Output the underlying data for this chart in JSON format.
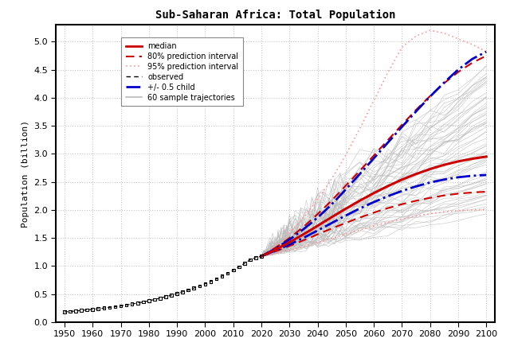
{
  "title": "Sub-Saharan Africa: Total Population",
  "ylabel": "Population (billion)",
  "xlim": [
    1947,
    2103
  ],
  "ylim": [
    0,
    5.3
  ],
  "xticks": [
    1950,
    1960,
    1970,
    1980,
    1990,
    2000,
    2010,
    2020,
    2030,
    2040,
    2050,
    2060,
    2070,
    2080,
    2090,
    2100
  ],
  "yticks": [
    0.0,
    0.5,
    1.0,
    1.5,
    2.0,
    2.5,
    3.0,
    3.5,
    4.0,
    4.5,
    5.0
  ],
  "bg_color": "#ffffff",
  "grid_color": "#c8c8c8",
  "observed_years": [
    1950,
    1952,
    1954,
    1956,
    1958,
    1960,
    1962,
    1964,
    1966,
    1968,
    1970,
    1972,
    1974,
    1976,
    1978,
    1980,
    1982,
    1984,
    1986,
    1988,
    1990,
    1992,
    1994,
    1996,
    1998,
    2000,
    2002,
    2004,
    2006,
    2008,
    2010,
    2012,
    2014,
    2016,
    2018,
    2020
  ],
  "observed_values": [
    0.183,
    0.191,
    0.199,
    0.208,
    0.218,
    0.228,
    0.239,
    0.251,
    0.263,
    0.276,
    0.29,
    0.306,
    0.323,
    0.341,
    0.36,
    0.381,
    0.404,
    0.428,
    0.454,
    0.481,
    0.51,
    0.54,
    0.572,
    0.606,
    0.644,
    0.683,
    0.726,
    0.771,
    0.82,
    0.872,
    0.926,
    0.985,
    1.046,
    1.111,
    1.15,
    1.175
  ],
  "proj_years": [
    2020,
    2021,
    2022,
    2023,
    2024,
    2025,
    2026,
    2027,
    2028,
    2029,
    2030,
    2032,
    2034,
    2036,
    2038,
    2040,
    2042,
    2044,
    2046,
    2048,
    2050,
    2055,
    2060,
    2065,
    2070,
    2075,
    2080,
    2085,
    2090,
    2095,
    2100
  ],
  "median_values": [
    1.175,
    1.198,
    1.221,
    1.244,
    1.268,
    1.293,
    1.318,
    1.344,
    1.37,
    1.397,
    1.424,
    1.48,
    1.537,
    1.596,
    1.656,
    1.717,
    1.779,
    1.84,
    1.901,
    1.961,
    2.021,
    2.165,
    2.3,
    2.425,
    2.54,
    2.64,
    2.728,
    2.804,
    2.865,
    2.912,
    2.95
  ],
  "pi80_low_values": [
    1.175,
    1.192,
    1.209,
    1.226,
    1.243,
    1.261,
    1.279,
    1.298,
    1.317,
    1.337,
    1.357,
    1.397,
    1.438,
    1.48,
    1.522,
    1.565,
    1.607,
    1.648,
    1.689,
    1.729,
    1.769,
    1.864,
    1.952,
    2.032,
    2.102,
    2.164,
    2.216,
    2.258,
    2.29,
    2.311,
    2.325
  ],
  "pi80_high_values": [
    1.175,
    1.204,
    1.233,
    1.263,
    1.294,
    1.326,
    1.359,
    1.393,
    1.428,
    1.464,
    1.501,
    1.578,
    1.659,
    1.744,
    1.833,
    1.925,
    2.021,
    2.119,
    2.221,
    2.325,
    2.432,
    2.697,
    2.97,
    3.245,
    3.518,
    3.782,
    4.03,
    4.258,
    4.458,
    4.622,
    4.748
  ],
  "pi95_low_values": [
    1.175,
    1.186,
    1.196,
    1.207,
    1.217,
    1.228,
    1.239,
    1.25,
    1.262,
    1.274,
    1.286,
    1.311,
    1.337,
    1.364,
    1.392,
    1.42,
    1.449,
    1.478,
    1.507,
    1.537,
    1.567,
    1.642,
    1.714,
    1.78,
    1.84,
    1.891,
    1.933,
    1.965,
    1.988,
    2.001,
    2.006
  ],
  "pi95_high_values": [
    1.175,
    1.21,
    1.246,
    1.284,
    1.323,
    1.363,
    1.406,
    1.45,
    1.496,
    1.544,
    1.594,
    1.698,
    1.809,
    1.927,
    2.053,
    2.186,
    2.328,
    2.478,
    2.636,
    2.803,
    2.978,
    3.45,
    3.95,
    4.45,
    4.9,
    5.1,
    5.2,
    5.15,
    5.05,
    4.95,
    4.82
  ],
  "child_low_values": [
    1.175,
    1.195,
    1.215,
    1.235,
    1.255,
    1.275,
    1.296,
    1.317,
    1.339,
    1.361,
    1.384,
    1.431,
    1.479,
    1.529,
    1.58,
    1.633,
    1.686,
    1.739,
    1.793,
    1.846,
    1.899,
    2.025,
    2.14,
    2.245,
    2.338,
    2.419,
    2.488,
    2.542,
    2.582,
    2.609,
    2.623
  ],
  "child_high_values": [
    1.175,
    1.201,
    1.228,
    1.255,
    1.283,
    1.312,
    1.342,
    1.373,
    1.405,
    1.438,
    1.472,
    1.543,
    1.618,
    1.697,
    1.779,
    1.865,
    1.956,
    2.051,
    2.151,
    2.256,
    2.365,
    2.64,
    2.92,
    3.2,
    3.48,
    3.755,
    4.02,
    4.27,
    4.5,
    4.69,
    4.82
  ],
  "colors": {
    "median": "#cc0000",
    "pi80": "#cc0000",
    "pi95": "#ff9999",
    "observed": "#000000",
    "child": "#0000cc",
    "trajectories": "#bbbbbb"
  },
  "legend_labels": [
    "median",
    "80% prediction interval",
    "95% prediction interval",
    "observed",
    "+/- 0.5 child",
    "60 sample trajectories"
  ]
}
